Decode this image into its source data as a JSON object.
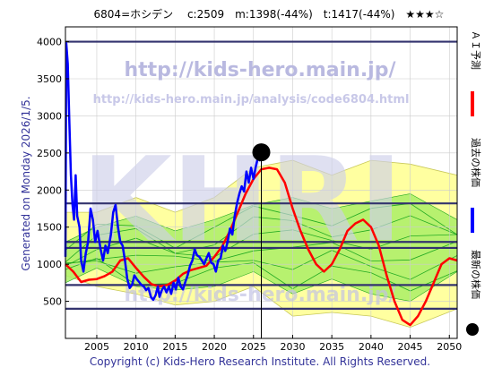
{
  "header": {
    "text": "6804=ホシデン　 c:2509　m:1398(-44%)　t:1417(-44%)　★★★☆"
  },
  "watermarks": {
    "url_main": "http://kids-hero.main.jp/",
    "url_page": "http://kids-hero.main.jp/analysis/code6804.html",
    "logo": "KHRI",
    "bottom": "http://kids-hero.main.jp/"
  },
  "side_left": "Generated on Monday 2026/1/5.",
  "footer": "Copyright (c) Kids-Hero Research Institute. All Rights Reserved.",
  "legend": [
    {
      "label": "ＡＩ予測",
      "color": "#ff0000",
      "kind": "line"
    },
    {
      "label": "過去の株価",
      "color": "#0000ff",
      "kind": "line"
    },
    {
      "label": "最新の株価",
      "color": "#000000",
      "kind": "dot"
    }
  ],
  "colors": {
    "band_fill": "#ffffa0",
    "band_edge": "#c8c85a",
    "green_fill": "#aaee66",
    "green_line": "#22aa22",
    "hlines": "#33336e",
    "grid": "#cccccc"
  },
  "chart_data": {
    "type": "line",
    "xlim": [
      2001,
      2051
    ],
    "ylim": [
      0,
      4200
    ],
    "xticks": [
      2005,
      2010,
      2015,
      2020,
      2025,
      2030,
      2035,
      2040,
      2045,
      2050
    ],
    "yticks": [
      500,
      1000,
      1500,
      2000,
      2500,
      3000,
      3500,
      4000
    ],
    "grid": true,
    "latest_point": {
      "x": 2026.0,
      "y": 2509
    },
    "horizontal_levels": [
      4000,
      1820,
      1300,
      1220,
      720,
      400
    ],
    "series": [
      {
        "name": "過去の株価",
        "color": "#0000ff",
        "points": [
          [
            2001.0,
            1100
          ],
          [
            2001.1,
            3980
          ],
          [
            2001.3,
            3700
          ],
          [
            2001.5,
            2900
          ],
          [
            2001.7,
            2200
          ],
          [
            2001.9,
            1800
          ],
          [
            2002.1,
            1600
          ],
          [
            2002.3,
            2200
          ],
          [
            2002.5,
            1650
          ],
          [
            2002.8,
            1500
          ],
          [
            2003.0,
            1050
          ],
          [
            2003.3,
            900
          ],
          [
            2003.6,
            1150
          ],
          [
            2003.9,
            1300
          ],
          [
            2004.2,
            1750
          ],
          [
            2004.5,
            1600
          ],
          [
            2004.8,
            1300
          ],
          [
            2005.1,
            1450
          ],
          [
            2005.5,
            1200
          ],
          [
            2005.8,
            1050
          ],
          [
            2006.1,
            1250
          ],
          [
            2006.4,
            1150
          ],
          [
            2006.8,
            1400
          ],
          [
            2007.1,
            1700
          ],
          [
            2007.4,
            1800
          ],
          [
            2007.7,
            1500
          ],
          [
            2008.0,
            1300
          ],
          [
            2008.3,
            1250
          ],
          [
            2008.6,
            1050
          ],
          [
            2008.9,
            800
          ],
          [
            2009.2,
            680
          ],
          [
            2009.5,
            720
          ],
          [
            2009.8,
            850
          ],
          [
            2010.1,
            800
          ],
          [
            2010.4,
            760
          ],
          [
            2010.7,
            720
          ],
          [
            2011.0,
            700
          ],
          [
            2011.3,
            650
          ],
          [
            2011.6,
            680
          ],
          [
            2011.9,
            560
          ],
          [
            2012.2,
            520
          ],
          [
            2012.5,
            580
          ],
          [
            2012.8,
            700
          ],
          [
            2013.0,
            560
          ],
          [
            2013.3,
            650
          ],
          [
            2013.6,
            700
          ],
          [
            2013.9,
            620
          ],
          [
            2014.2,
            700
          ],
          [
            2014.5,
            600
          ],
          [
            2014.8,
            750
          ],
          [
            2015.1,
            660
          ],
          [
            2015.4,
            820
          ],
          [
            2015.7,
            700
          ],
          [
            2016.0,
            660
          ],
          [
            2016.3,
            760
          ],
          [
            2016.6,
            850
          ],
          [
            2016.9,
            980
          ],
          [
            2017.2,
            1050
          ],
          [
            2017.5,
            1200
          ],
          [
            2017.8,
            1120
          ],
          [
            2018.1,
            1100
          ],
          [
            2018.4,
            1050
          ],
          [
            2018.7,
            1000
          ],
          [
            2019.0,
            1080
          ],
          [
            2019.3,
            1150
          ],
          [
            2019.6,
            1020
          ],
          [
            2019.9,
            1000
          ],
          [
            2020.2,
            900
          ],
          [
            2020.5,
            1050
          ],
          [
            2020.8,
            1080
          ],
          [
            2021.1,
            1250
          ],
          [
            2021.4,
            1180
          ],
          [
            2021.7,
            1300
          ],
          [
            2022.0,
            1480
          ],
          [
            2022.3,
            1400
          ],
          [
            2022.6,
            1650
          ],
          [
            2022.9,
            1820
          ],
          [
            2023.2,
            1950
          ],
          [
            2023.5,
            2050
          ],
          [
            2023.8,
            1980
          ],
          [
            2024.1,
            2250
          ],
          [
            2024.4,
            2100
          ],
          [
            2024.7,
            2300
          ],
          [
            2025.0,
            2150
          ],
          [
            2025.3,
            2320
          ],
          [
            2025.6,
            2450
          ],
          [
            2025.8,
            2400
          ],
          [
            2026.0,
            2509
          ]
        ]
      },
      {
        "name": "ＡＩ予測",
        "color": "#ff0000",
        "points": [
          [
            2001.0,
            1000
          ],
          [
            2002.0,
            900
          ],
          [
            2003.0,
            760
          ],
          [
            2004.0,
            790
          ],
          [
            2005.0,
            800
          ],
          [
            2006.0,
            840
          ],
          [
            2007.0,
            900
          ],
          [
            2008.0,
            1050
          ],
          [
            2009.0,
            1080
          ],
          [
            2010.0,
            950
          ],
          [
            2011.0,
            830
          ],
          [
            2012.0,
            730
          ],
          [
            2013.0,
            700
          ],
          [
            2014.0,
            720
          ],
          [
            2015.0,
            780
          ],
          [
            2016.0,
            870
          ],
          [
            2017.0,
            920
          ],
          [
            2018.0,
            950
          ],
          [
            2019.0,
            980
          ],
          [
            2020.0,
            1100
          ],
          [
            2021.0,
            1240
          ],
          [
            2022.0,
            1450
          ],
          [
            2023.0,
            1700
          ],
          [
            2024.0,
            1950
          ],
          [
            2025.0,
            2150
          ],
          [
            2026.0,
            2280
          ],
          [
            2027.0,
            2300
          ],
          [
            2028.0,
            2280
          ],
          [
            2029.0,
            2100
          ],
          [
            2030.0,
            1750
          ],
          [
            2031.0,
            1450
          ],
          [
            2032.0,
            1200
          ],
          [
            2033.0,
            1000
          ],
          [
            2034.0,
            900
          ],
          [
            2035.0,
            1000
          ],
          [
            2036.0,
            1200
          ],
          [
            2037.0,
            1450
          ],
          [
            2038.0,
            1550
          ],
          [
            2039.0,
            1600
          ],
          [
            2040.0,
            1500
          ],
          [
            2041.0,
            1250
          ],
          [
            2042.0,
            850
          ],
          [
            2043.0,
            500
          ],
          [
            2044.0,
            250
          ],
          [
            2045.0,
            180
          ],
          [
            2046.0,
            300
          ],
          [
            2047.0,
            500
          ],
          [
            2048.0,
            750
          ],
          [
            2049.0,
            1000
          ],
          [
            2050.0,
            1080
          ],
          [
            2051.0,
            1050
          ]
        ]
      }
    ],
    "band_upper": [
      [
        2001,
        1700
      ],
      [
        2005,
        1700
      ],
      [
        2010,
        1900
      ],
      [
        2015,
        1700
      ],
      [
        2020,
        1900
      ],
      [
        2025,
        2300
      ],
      [
        2030,
        2400
      ],
      [
        2035,
        2200
      ],
      [
        2040,
        2400
      ],
      [
        2045,
        2350
      ],
      [
        2051,
        2200
      ]
    ],
    "band_lower": [
      [
        2001,
        850
      ],
      [
        2005,
        700
      ],
      [
        2010,
        600
      ],
      [
        2015,
        450
      ],
      [
        2020,
        500
      ],
      [
        2025,
        700
      ],
      [
        2030,
        300
      ],
      [
        2035,
        350
      ],
      [
        2040,
        300
      ],
      [
        2045,
        150
      ],
      [
        2051,
        400
      ]
    ],
    "green_upper": [
      [
        2001,
        1300
      ],
      [
        2005,
        1500
      ],
      [
        2010,
        1650
      ],
      [
        2015,
        1450
      ],
      [
        2020,
        1600
      ],
      [
        2025,
        1800
      ],
      [
        2030,
        1900
      ],
      [
        2035,
        1750
      ],
      [
        2040,
        1850
      ],
      [
        2045,
        1950
      ],
      [
        2051,
        1600
      ]
    ],
    "green_lower": [
      [
        2001,
        750
      ],
      [
        2005,
        950
      ],
      [
        2010,
        700
      ],
      [
        2015,
        650
      ],
      [
        2020,
        700
      ],
      [
        2025,
        900
      ],
      [
        2030,
        600
      ],
      [
        2035,
        800
      ],
      [
        2040,
        600
      ],
      [
        2045,
        500
      ],
      [
        2051,
        900
      ]
    ]
  }
}
